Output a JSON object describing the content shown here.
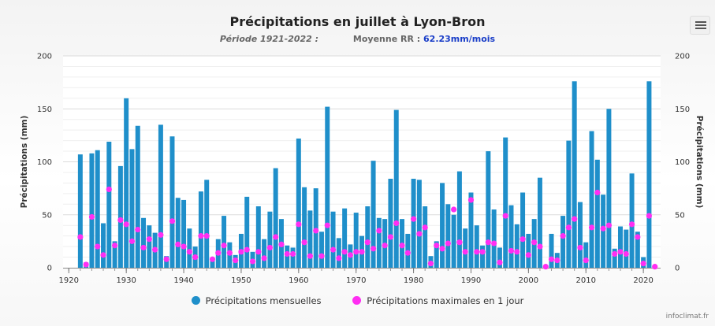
{
  "title": "Précipitations en juillet à Lyon-Bron",
  "subtitle": {
    "period_label": "Période 1921-2022 :",
    "mean_label": "Moyenne RR :",
    "mean_value": "62.23mm/mois"
  },
  "menu_icon": "hamburger-menu-icon",
  "legend": {
    "monthly_label": "Précipitations mensuelles",
    "max_label": "Précipitations maximales en 1 jour"
  },
  "credits": "infoclimat.fr",
  "colors": {
    "bar": "#1f8fca",
    "dot": "#ff2ef2",
    "grid": "#e3e3e3"
  },
  "chart_data": {
    "type": "bar",
    "title": "Précipitations en juillet à Lyon-Bron",
    "xlabel": "",
    "ylabel_left": "Précipitations (mm)",
    "ylabel_right": "Précipitations (mm)",
    "xlim": [
      1919,
      2023
    ],
    "ylim": [
      0,
      200
    ],
    "x_ticks": [
      1920,
      1930,
      1940,
      1950,
      1960,
      1970,
      1980,
      1990,
      2000,
      2010,
      2020
    ],
    "y_ticks": [
      0,
      50,
      100,
      150,
      200
    ],
    "grid": true,
    "legend_position": "bottom-center",
    "years": [
      1922,
      1923,
      1924,
      1925,
      1926,
      1927,
      1928,
      1929,
      1930,
      1931,
      1932,
      1933,
      1934,
      1935,
      1936,
      1937,
      1938,
      1939,
      1940,
      1941,
      1942,
      1943,
      1944,
      1945,
      1946,
      1947,
      1948,
      1949,
      1950,
      1951,
      1952,
      1953,
      1954,
      1955,
      1956,
      1957,
      1958,
      1959,
      1960,
      1961,
      1962,
      1963,
      1964,
      1965,
      1966,
      1967,
      1968,
      1969,
      1970,
      1971,
      1972,
      1973,
      1974,
      1975,
      1976,
      1977,
      1978,
      1979,
      1980,
      1981,
      1982,
      1983,
      1984,
      1985,
      1986,
      1987,
      1988,
      1989,
      1990,
      1991,
      1992,
      1993,
      1994,
      1995,
      1996,
      1997,
      1998,
      1999,
      2000,
      2001,
      2002,
      2003,
      2004,
      2005,
      2006,
      2007,
      2008,
      2009,
      2010,
      2011,
      2012,
      2013,
      2014,
      2015,
      2016,
      2017,
      2018,
      2019,
      2020,
      2021,
      2022
    ],
    "series": [
      {
        "name": "Précipitations mensuelles",
        "kind": "bar",
        "values": [
          107,
          5,
          108,
          111,
          42,
          119,
          25,
          96,
          160,
          112,
          134,
          47,
          40,
          33,
          135,
          11,
          124,
          66,
          64,
          37,
          20,
          72,
          83,
          9,
          27,
          49,
          24,
          12,
          32,
          67,
          15,
          58,
          27,
          53,
          94,
          46,
          21,
          19,
          122,
          76,
          54,
          75,
          34,
          152,
          53,
          28,
          56,
          22,
          52,
          30,
          58,
          101,
          47,
          46,
          84,
          149,
          46,
          32,
          84,
          83,
          58,
          11,
          25,
          80,
          60,
          50,
          91,
          37,
          71,
          40,
          21,
          110,
          55,
          19,
          123,
          59,
          41,
          71,
          32,
          46,
          85,
          1,
          32,
          14,
          49,
          120,
          176,
          62,
          24,
          129,
          102,
          69,
          150,
          18,
          39,
          36,
          89,
          34,
          10,
          176,
          1
        ],
        "unit": "mm"
      },
      {
        "name": "Précipitations maximales en 1 jour",
        "kind": "scatter",
        "values": [
          29,
          3,
          48,
          20,
          12,
          74,
          21,
          45,
          41,
          25,
          36,
          19,
          27,
          17,
          31,
          8,
          44,
          22,
          20,
          15,
          10,
          30,
          30,
          8,
          14,
          21,
          14,
          7,
          15,
          17,
          6,
          15,
          9,
          19,
          29,
          22,
          13,
          13,
          41,
          24,
          11,
          35,
          11,
          40,
          17,
          9,
          15,
          12,
          15,
          15,
          24,
          18,
          35,
          21,
          29,
          42,
          21,
          14,
          46,
          32,
          38,
          4,
          21,
          18,
          23,
          55,
          24,
          15,
          64,
          15,
          15,
          24,
          23,
          5,
          49,
          16,
          15,
          27,
          12,
          24,
          20,
          1,
          8,
          7,
          30,
          38,
          46,
          19,
          7,
          38,
          71,
          37,
          40,
          13,
          15,
          13,
          41,
          29,
          4,
          49,
          1
        ],
        "unit": "mm"
      }
    ]
  }
}
